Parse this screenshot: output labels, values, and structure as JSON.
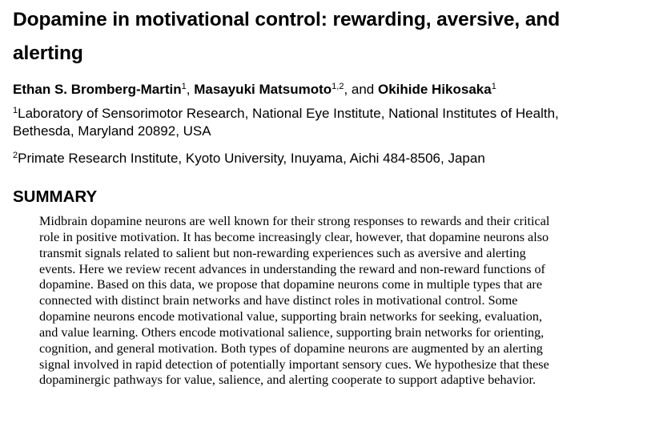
{
  "title": {
    "line1": "Dopamine in motivational control: rewarding, aversive, and",
    "line2": "alerting"
  },
  "authors": {
    "a1_name": "Ethan S. Bromberg-Martin",
    "a1_sup": "1",
    "sep1": ", ",
    "a2_name": "Masayuki Matsumoto",
    "a2_sup": "1,2",
    "sep2": ", and ",
    "a3_name": "Okihide Hikosaka",
    "a3_sup": "1"
  },
  "affiliations": [
    {
      "sup": "1",
      "line1": "Laboratory of Sensorimotor Research, National Eye Institute, National Institutes of Health,",
      "line2": "Bethesda, Maryland 20892, USA"
    },
    {
      "sup": "2",
      "line1": "Primate Research Institute, Kyoto University, Inuyama, Aichi 484-8506, Japan"
    }
  ],
  "summary": {
    "heading": "SUMMARY",
    "lines": [
      "Midbrain dopamine neurons are well known for their strong responses to rewards and their critical",
      "role in positive motivation. It has become increasingly clear, however, that dopamine neurons also",
      "transmit signals related to salient but non-rewarding experiences such as aversive and alerting",
      "events. Here we review recent advances in understanding the reward and non-reward functions of",
      "dopamine. Based on this data, we propose that dopamine neurons come in multiple types that are",
      "connected with distinct brain networks and have distinct roles in motivational control. Some",
      "dopamine neurons encode motivational value, supporting brain networks for seeking, evaluation,",
      "and value learning. Others encode motivational salience, supporting brain networks for orienting,",
      "cognition, and general motivation. Both types of dopamine neurons are augmented by an alerting",
      "signal involved in rapid detection of potentially important sensory cues. We hypothesize that these",
      "dopaminergic pathways for value, salience, and alerting cooperate to support adaptive behavior."
    ]
  }
}
